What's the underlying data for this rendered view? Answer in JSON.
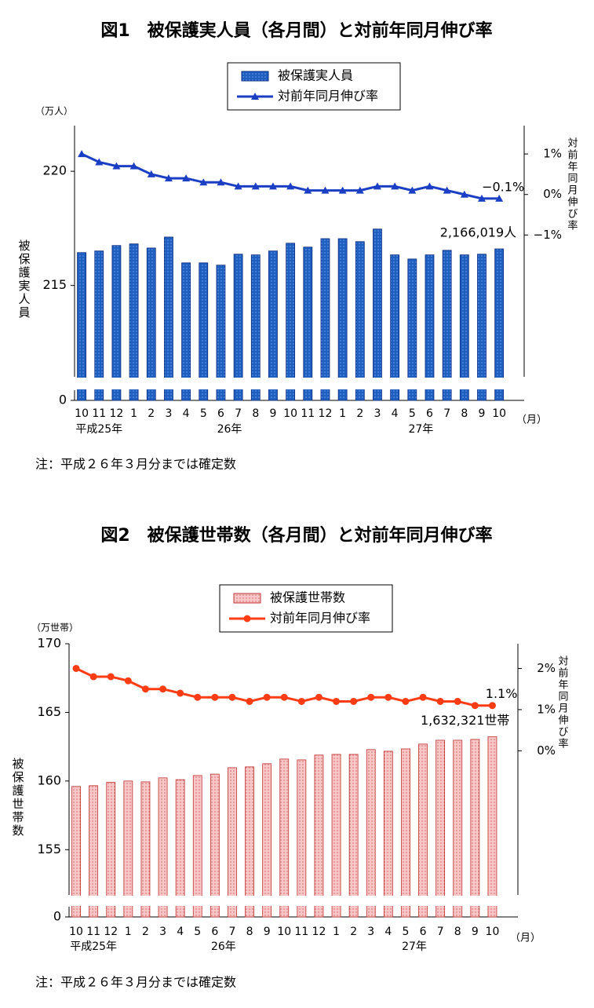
{
  "chart_data": [
    {
      "type": "combo",
      "title": "図1　被保護実人員（各月間）と対前年同月伸び率",
      "y_unit": "（万人）",
      "ylabel": "被保護実人員",
      "y2label": "対前年同月伸び率",
      "x_unit": "（月）",
      "note": "注：平成２６年３月分までは確定数",
      "categories": [
        "10",
        "11",
        "12",
        "1",
        "2",
        "3",
        "4",
        "5",
        "6",
        "7",
        "8",
        "9",
        "10",
        "11",
        "12",
        "1",
        "2",
        "3",
        "4",
        "5",
        "6",
        "7",
        "8",
        "9",
        "10"
      ],
      "x_groups": [
        {
          "label": "平成25年",
          "start": 0,
          "end": 2
        },
        {
          "label": "26年",
          "start": 3,
          "end": 14
        },
        {
          "label": "27年",
          "start": 15,
          "end": 24
        }
      ],
      "ylim": [
        211,
        222
      ],
      "yticks": [
        0,
        215,
        220
      ],
      "axis_break": true,
      "y2lim": [
        -4.5,
        1.7
      ],
      "y2ticks": [
        {
          "value": 1,
          "label": "1%"
        },
        {
          "value": 0,
          "label": "0%"
        },
        {
          "value": -1,
          "label": "−1%"
        }
      ],
      "series": [
        {
          "name": "被保護実人員",
          "type": "bar",
          "color": "#1e5fc0",
          "edgecolor": "#0a2a80",
          "values": [
            216.44,
            216.51,
            216.75,
            216.82,
            216.64,
            217.12,
            215.99,
            215.99,
            215.89,
            216.37,
            216.34,
            216.51,
            216.85,
            216.68,
            217.05,
            217.05,
            216.92,
            217.47,
            216.34,
            216.16,
            216.34,
            216.54,
            216.34,
            216.37,
            216.6019
          ],
          "value_labels": [
            null,
            null,
            null,
            null,
            null,
            null,
            null,
            null,
            null,
            null,
            null,
            null,
            null,
            null,
            null,
            null,
            null,
            null,
            null,
            null,
            null,
            null,
            null,
            null,
            "2,166,019人"
          ]
        },
        {
          "name": "対前年同月伸び率",
          "type": "line",
          "axis": "y2",
          "marker": "triangle",
          "color": "#1b3fc4",
          "values": [
            1.0,
            0.8,
            0.7,
            0.7,
            0.5,
            0.4,
            0.4,
            0.3,
            0.3,
            0.2,
            0.2,
            0.2,
            0.2,
            0.1,
            0.1,
            0.1,
            0.1,
            0.2,
            0.2,
            0.1,
            0.2,
            0.1,
            0.0,
            -0.1,
            -0.1
          ],
          "value_labels": [
            null,
            null,
            null,
            null,
            null,
            null,
            null,
            null,
            null,
            null,
            null,
            null,
            null,
            null,
            null,
            null,
            null,
            null,
            null,
            null,
            null,
            null,
            null,
            null,
            "−0.1%"
          ]
        }
      ]
    },
    {
      "type": "combo",
      "title": "図2　被保護世帯数（各月間）と対前年同月伸び率",
      "y_unit": "（万世帯）",
      "ylabel": "被保護世帯数",
      "y2label": "対前年同月伸び率",
      "x_unit": "（月）",
      "note": "注：平成２６年３月分までは確定数",
      "categories": [
        "10",
        "11",
        "12",
        "1",
        "2",
        "3",
        "4",
        "5",
        "6",
        "7",
        "8",
        "9",
        "10",
        "11",
        "12",
        "1",
        "2",
        "3",
        "4",
        "5",
        "6",
        "7",
        "8",
        "9",
        "10"
      ],
      "x_groups": [
        {
          "label": "平成25年",
          "start": 0,
          "end": 2
        },
        {
          "label": "26年",
          "start": 3,
          "end": 14
        },
        {
          "label": "27年",
          "start": 15,
          "end": 24
        }
      ],
      "ylim": [
        151.7,
        170
      ],
      "yticks": [
        0,
        155,
        160,
        165,
        170
      ],
      "axis_break": true,
      "y2lim": [
        -3.5,
        2.6
      ],
      "y2ticks": [
        {
          "value": 2,
          "label": "2%"
        },
        {
          "value": 1,
          "label": "1%"
        },
        {
          "value": 0,
          "label": "0%"
        }
      ],
      "series": [
        {
          "name": "被保護世帯数",
          "type": "bar",
          "color": "#f7c6c6",
          "edgecolor": "#c03030",
          "values": [
            159.6,
            159.66,
            159.9,
            160.0,
            159.94,
            160.23,
            160.1,
            160.4,
            160.5,
            160.97,
            161.03,
            161.26,
            161.6,
            161.54,
            161.89,
            161.94,
            161.94,
            162.29,
            162.17,
            162.34,
            162.69,
            162.97,
            162.97,
            163.03,
            163.2321
          ],
          "value_labels": [
            null,
            null,
            null,
            null,
            null,
            null,
            null,
            null,
            null,
            null,
            null,
            null,
            null,
            null,
            null,
            null,
            null,
            null,
            null,
            null,
            null,
            null,
            null,
            null,
            "1,632,321世帯"
          ]
        },
        {
          "name": "対前年同月伸び率",
          "type": "line",
          "axis": "y2",
          "marker": "circle",
          "color": "#ff3c14",
          "values": [
            2.0,
            1.8,
            1.8,
            1.7,
            1.5,
            1.5,
            1.4,
            1.3,
            1.3,
            1.3,
            1.2,
            1.3,
            1.3,
            1.2,
            1.3,
            1.2,
            1.2,
            1.3,
            1.3,
            1.2,
            1.3,
            1.2,
            1.2,
            1.1,
            1.1
          ],
          "value_labels": [
            null,
            null,
            null,
            null,
            null,
            null,
            null,
            null,
            null,
            null,
            null,
            null,
            null,
            null,
            null,
            null,
            null,
            null,
            null,
            null,
            null,
            null,
            null,
            null,
            "1.1%"
          ]
        }
      ]
    }
  ]
}
